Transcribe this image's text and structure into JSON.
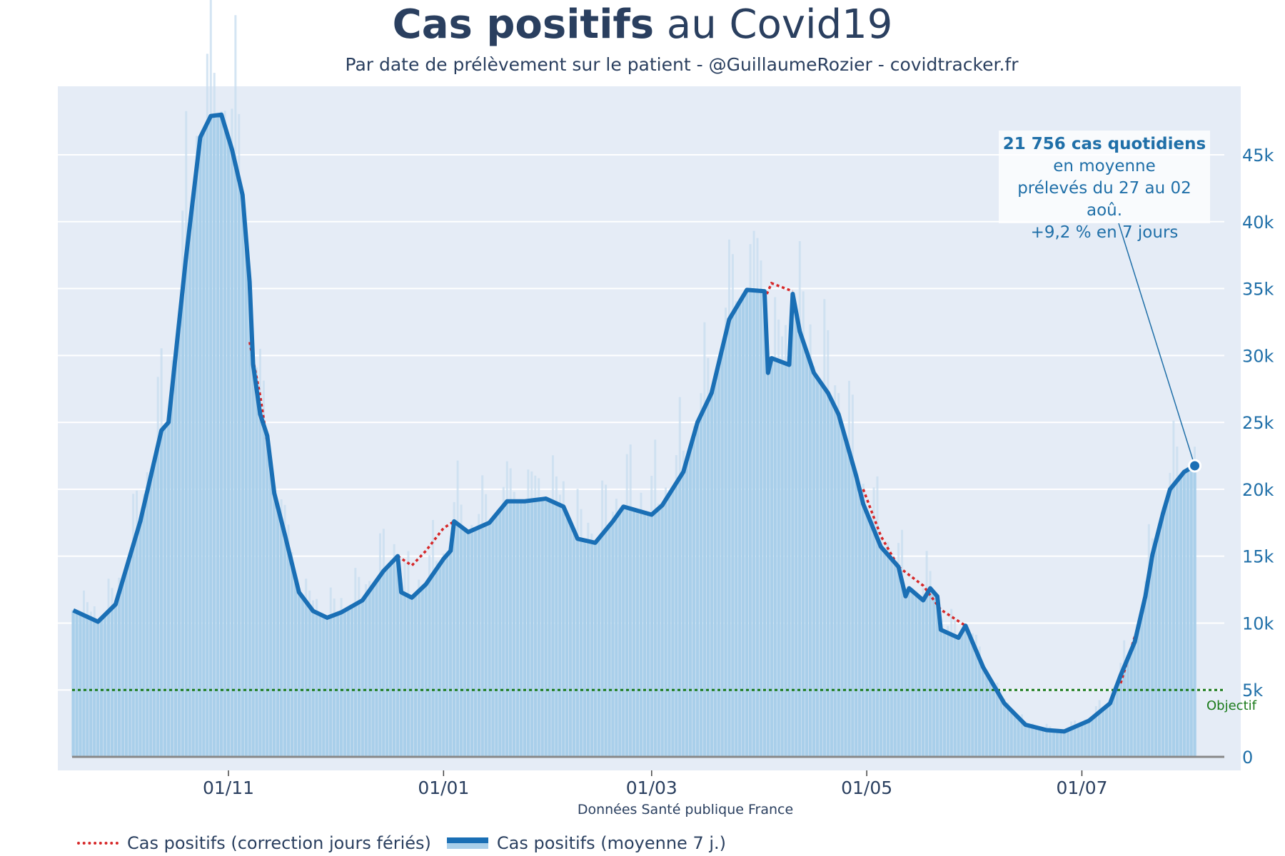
{
  "title_bold": "Cas positifs",
  "title_rest": " au Covid19",
  "subtitle": "Par date de prélèvement sur le patient - @GuillaumeRozier - covidtracker.fr",
  "source": "Données Santé publique France",
  "annotation": {
    "line1": "21 756 cas quotidiens",
    "line2": "en moyenne",
    "line3": "prélevés du 27 au 02 aoû.",
    "line4": "+9,2 % en 7 jours"
  },
  "legend": [
    "Cas positifs (correction jours fériés)",
    "Cas positifs (moyenne 7 j.)"
  ],
  "objective_label": "Objectif",
  "colors": {
    "avg_line": "#1a6fb5",
    "bars": "#a9cfea",
    "correction": "#d62728",
    "objective": "#1a7a1a",
    "plot_bg": "#e5ecf6"
  },
  "chart_data": {
    "type": "bar+line",
    "x_ticks": [
      {
        "date": "2020-11-01",
        "label": "01/11"
      },
      {
        "date": "2021-01-01",
        "label": "01/01"
      },
      {
        "date": "2021-03-01",
        "label": "01/03"
      },
      {
        "date": "2021-05-01",
        "label": "01/05"
      },
      {
        "date": "2021-07-01",
        "label": "01/07"
      }
    ],
    "y_ticks": [
      {
        "value": 0,
        "label": "0"
      },
      {
        "value": 5000,
        "label": "5k"
      },
      {
        "value": 10000,
        "label": "10k"
      },
      {
        "value": 15000,
        "label": "15k"
      },
      {
        "value": 20000,
        "label": "20k"
      },
      {
        "value": 25000,
        "label": "25k"
      },
      {
        "value": 30000,
        "label": "30k"
      },
      {
        "value": 35000,
        "label": "35k"
      },
      {
        "value": 40000,
        "label": "40k"
      },
      {
        "value": 45000,
        "label": "45k"
      }
    ],
    "ylim": [
      0,
      49500
    ],
    "xlim": [
      "2020-09-15",
      "2021-08-09"
    ],
    "grid": true,
    "y_axis_side": "right",
    "legend_placement": "bottom-left",
    "objective": 5000,
    "series": [
      {
        "name": "Cas positifs (moyenne 7 j.)",
        "points": [
          [
            "2020-09-18",
            10950
          ],
          [
            "2020-09-25",
            10100
          ],
          [
            "2020-09-30",
            11400
          ],
          [
            "2020-10-07",
            17600
          ],
          [
            "2020-10-13",
            24400
          ],
          [
            "2020-10-15",
            25000
          ],
          [
            "2020-10-20",
            37400
          ],
          [
            "2020-10-24",
            46300
          ],
          [
            "2020-10-27",
            47900
          ],
          [
            "2020-10-30",
            48000
          ],
          [
            "2020-11-02",
            45400
          ],
          [
            "2020-11-05",
            42000
          ],
          [
            "2020-11-07",
            35500
          ],
          [
            "2020-11-08",
            29300
          ],
          [
            "2020-11-10",
            25600
          ],
          [
            "2020-11-12",
            24000
          ],
          [
            "2020-11-14",
            19700
          ],
          [
            "2020-11-17",
            16600
          ],
          [
            "2020-11-21",
            12300
          ],
          [
            "2020-11-25",
            10900
          ],
          [
            "2020-11-29",
            10400
          ],
          [
            "2020-12-03",
            10800
          ],
          [
            "2020-12-09",
            11700
          ],
          [
            "2020-12-15",
            13900
          ],
          [
            "2020-12-19",
            15000
          ],
          [
            "2020-12-20",
            12300
          ],
          [
            "2020-12-23",
            11900
          ],
          [
            "2020-12-27",
            12900
          ],
          [
            "2021-01-01",
            14800
          ],
          [
            "2021-01-03",
            15400
          ],
          [
            "2021-01-04",
            17600
          ],
          [
            "2021-01-08",
            16800
          ],
          [
            "2021-01-14",
            17500
          ],
          [
            "2021-01-19",
            19100
          ],
          [
            "2021-01-24",
            19100
          ],
          [
            "2021-01-30",
            19300
          ],
          [
            "2021-02-04",
            18700
          ],
          [
            "2021-02-08",
            16300
          ],
          [
            "2021-02-13",
            16000
          ],
          [
            "2021-02-18",
            17600
          ],
          [
            "2021-02-21",
            18700
          ],
          [
            "2021-03-01",
            18100
          ],
          [
            "2021-03-04",
            18800
          ],
          [
            "2021-03-10",
            21300
          ],
          [
            "2021-03-14",
            25000
          ],
          [
            "2021-03-18",
            27200
          ],
          [
            "2021-03-23",
            32700
          ],
          [
            "2021-03-28",
            34900
          ],
          [
            "2021-04-02",
            34800
          ],
          [
            "2021-04-03",
            28700
          ],
          [
            "2021-04-04",
            29800
          ],
          [
            "2021-04-09",
            29300
          ],
          [
            "2021-04-10",
            34600
          ],
          [
            "2021-04-12",
            31800
          ],
          [
            "2021-04-16",
            28700
          ],
          [
            "2021-04-20",
            27200
          ],
          [
            "2021-04-23",
            25600
          ],
          [
            "2021-04-28",
            21000
          ],
          [
            "2021-04-30",
            18900
          ],
          [
            "2021-05-05",
            15700
          ],
          [
            "2021-05-10",
            14200
          ],
          [
            "2021-05-12",
            12000
          ],
          [
            "2021-05-13",
            12600
          ],
          [
            "2021-05-17",
            11700
          ],
          [
            "2021-05-19",
            12600
          ],
          [
            "2021-05-21",
            12000
          ],
          [
            "2021-05-22",
            9500
          ],
          [
            "2021-05-27",
            8900
          ],
          [
            "2021-05-29",
            9800
          ],
          [
            "2021-06-03",
            6700
          ],
          [
            "2021-06-09",
            4000
          ],
          [
            "2021-06-15",
            2400
          ],
          [
            "2021-06-21",
            2000
          ],
          [
            "2021-06-26",
            1900
          ],
          [
            "2021-07-03",
            2700
          ],
          [
            "2021-07-09",
            4000
          ],
          [
            "2021-07-12",
            6100
          ],
          [
            "2021-07-16",
            8600
          ],
          [
            "2021-07-19",
            12000
          ],
          [
            "2021-07-21",
            15100
          ],
          [
            "2021-07-24",
            18200
          ],
          [
            "2021-07-26",
            20000
          ],
          [
            "2021-07-30",
            21300
          ],
          [
            "2021-08-02",
            21756
          ]
        ]
      },
      {
        "name": "Cas positifs (correction jours fériés)",
        "segments": [
          [
            [
              "2020-11-07",
              31000
            ],
            [
              "2020-11-10",
              27000
            ],
            [
              "2020-11-14",
              20000
            ]
          ],
          [
            [
              "2020-12-19",
              15000
            ],
            [
              "2020-12-23",
              14300
            ],
            [
              "2020-12-27",
              15400
            ],
            [
              "2021-01-01",
              17100
            ],
            [
              "2021-01-04",
              17600
            ]
          ],
          [
            [
              "2021-04-02",
              34200
            ],
            [
              "2021-04-04",
              35400
            ],
            [
              "2021-04-10",
              34800
            ]
          ],
          [
            [
              "2021-04-30",
              20000
            ],
            [
              "2021-05-05",
              16500
            ],
            [
              "2021-05-10",
              14200
            ],
            [
              "2021-05-17",
              12800
            ],
            [
              "2021-05-22",
              11000
            ],
            [
              "2021-05-29",
              9800
            ]
          ],
          [
            [
              "2021-07-12",
              5500
            ],
            [
              "2021-07-16",
              9000
            ]
          ]
        ]
      }
    ]
  }
}
